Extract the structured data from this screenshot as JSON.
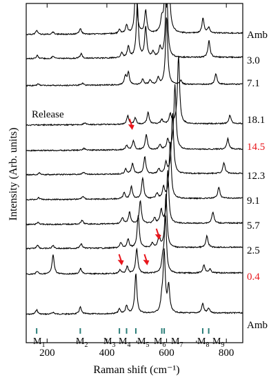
{
  "chart_data": {
    "type": "line",
    "xlabel": "Raman shift (cm⁻¹)",
    "ylabel": "Intensity (Arb. units)",
    "xlim": [
      130,
      855
    ],
    "x_ticks": [
      200,
      400,
      600,
      800
    ],
    "x_tick_labels": [
      "200",
      "400",
      "600",
      "800"
    ],
    "y_ticks_shown": false,
    "grid": false,
    "annotations": [
      {
        "text": "Release",
        "near_series": "18.1"
      }
    ],
    "colors": {
      "axis": "#000000",
      "trace": "#000000",
      "highlight_label": "#e8161c",
      "arrow": "#e8161c",
      "mode_marker": "#2a7d78"
    },
    "modes": [
      {
        "label": "M",
        "sub": "1",
        "x": 165
      },
      {
        "label": "M",
        "sub": "2",
        "x": 311
      },
      {
        "label": "M",
        "sub": "3",
        "x": 442
      },
      {
        "label": "M",
        "sub": "4",
        "x": 466
      },
      {
        "label": "M",
        "sub": "5",
        "x": 497
      },
      {
        "label": "M",
        "sub": "6",
        "x": 584
      },
      {
        "label": "M",
        "sub": "7",
        "x": 592
      },
      {
        "label": "M",
        "sub": "8",
        "x": 721
      },
      {
        "label": "M",
        "sub": "9",
        "x": 741
      }
    ],
    "series": [
      {
        "name": "Amb",
        "highlight": false,
        "peaks": [
          [
            165,
            0.12
          ],
          [
            220,
            0.05
          ],
          [
            311,
            0.18
          ],
          [
            442,
            0.12
          ],
          [
            466,
            0.2
          ],
          [
            497,
            1.05
          ],
          [
            584,
            0.3
          ],
          [
            592,
            1.6
          ],
          [
            607,
            0.7
          ],
          [
            721,
            0.25
          ],
          [
            741,
            0.12
          ]
        ]
      },
      {
        "name": "0.4",
        "highlight": true,
        "peaks": [
          [
            167,
            0.08
          ],
          [
            220,
            0.5
          ],
          [
            312,
            0.14
          ],
          [
            444,
            0.1
          ],
          [
            468,
            0.18
          ],
          [
            500,
            0.65
          ],
          [
            587,
            0.3
          ],
          [
            596,
            1.5
          ],
          [
            725,
            0.22
          ],
          [
            745,
            0.1
          ]
        ]
      },
      {
        "name": "2.5",
        "highlight": false,
        "peaks": [
          [
            168,
            0.1
          ],
          [
            220,
            0.08
          ],
          [
            314,
            0.12
          ],
          [
            447,
            0.14
          ],
          [
            471,
            0.22
          ],
          [
            505,
            0.85
          ],
          [
            552,
            0.12
          ],
          [
            575,
            0.3
          ],
          [
            598,
            1.4
          ],
          [
            735,
            0.3
          ]
        ]
      },
      {
        "name": "5.7",
        "highlight": false,
        "peaks": [
          [
            170,
            0.06
          ],
          [
            317,
            0.1
          ],
          [
            452,
            0.16
          ],
          [
            476,
            0.3
          ],
          [
            512,
            0.6
          ],
          [
            560,
            0.14
          ],
          [
            582,
            0.35
          ],
          [
            604,
            1.4
          ],
          [
            755,
            0.3
          ]
        ]
      },
      {
        "name": "9.1",
        "highlight": false,
        "peaks": [
          [
            172,
            0.05
          ],
          [
            320,
            0.08
          ],
          [
            458,
            0.16
          ],
          [
            482,
            0.32
          ],
          [
            520,
            0.55
          ],
          [
            568,
            0.14
          ],
          [
            590,
            0.3
          ],
          [
            612,
            1.5
          ],
          [
            775,
            0.3
          ]
        ]
      },
      {
        "name": "12.3",
        "highlight": false,
        "peaks": [
          [
            175,
            0.05
          ],
          [
            322,
            0.06
          ],
          [
            463,
            0.14
          ],
          [
            486,
            0.28
          ],
          [
            527,
            0.45
          ],
          [
            574,
            0.12
          ],
          [
            598,
            0.28
          ],
          [
            620,
            1.6
          ],
          [
            792,
            0.28
          ]
        ]
      },
      {
        "name": "14.5",
        "highlight": true,
        "peaks": [
          [
            324,
            0.05
          ],
          [
            466,
            0.12
          ],
          [
            489,
            0.24
          ],
          [
            532,
            0.4
          ],
          [
            578,
            0.12
          ],
          [
            604,
            0.25
          ],
          [
            628,
            1.7
          ],
          [
            805,
            0.28
          ]
        ]
      },
      {
        "name": "18.1",
        "highlight": false,
        "peaks": [
          [
            326,
            0.05
          ],
          [
            470,
            0.22
          ],
          [
            495,
            0.16
          ],
          [
            538,
            0.3
          ],
          [
            584,
            0.12
          ],
          [
            612,
            0.25
          ],
          [
            640,
            1.8
          ],
          [
            812,
            0.22
          ]
        ]
      },
      {
        "name": "7.1",
        "highlight": false,
        "peaks": [
          [
            170,
            0.05
          ],
          [
            318,
            0.06
          ],
          [
            462,
            0.22
          ],
          [
            472,
            0.32
          ],
          [
            520,
            0.15
          ],
          [
            545,
            0.12
          ],
          [
            572,
            0.18
          ],
          [
            600,
            1.8
          ],
          [
            648,
            0.1
          ],
          [
            765,
            0.28
          ]
        ]
      },
      {
        "name": "3.0",
        "highlight": false,
        "peaks": [
          [
            167,
            0.08
          ],
          [
            220,
            0.06
          ],
          [
            314,
            0.12
          ],
          [
            450,
            0.14
          ],
          [
            472,
            0.3
          ],
          [
            502,
            1.4
          ],
          [
            530,
            0.8
          ],
          [
            555,
            0.14
          ],
          [
            578,
            0.25
          ],
          [
            600,
            2.0
          ],
          [
            742,
            0.45
          ]
        ]
      },
      {
        "name": "Amb",
        "highlight": false,
        "peaks": [
          [
            165,
            0.1
          ],
          [
            220,
            0.06
          ],
          [
            311,
            0.15
          ],
          [
            442,
            0.1
          ],
          [
            466,
            0.22
          ],
          [
            497,
            1.4
          ],
          [
            530,
            0.6
          ],
          [
            584,
            0.3
          ],
          [
            598,
            2.0
          ],
          [
            606,
            2.0
          ],
          [
            722,
            0.4
          ],
          [
            741,
            0.15
          ]
        ]
      }
    ],
    "arrows": [
      {
        "series": "0.4",
        "x": 450
      },
      {
        "series": "0.4",
        "x": 535
      },
      {
        "series": "2.5",
        "x": 575
      },
      {
        "series": "14.5",
        "x": 485
      }
    ]
  }
}
